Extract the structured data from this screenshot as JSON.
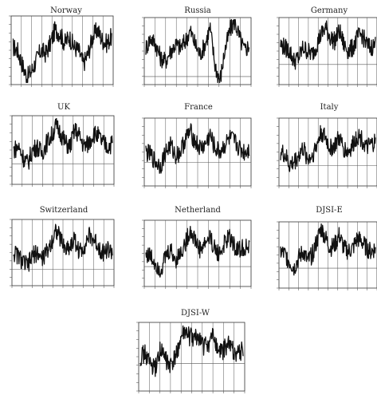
{
  "colors": {
    "line": "#111111",
    "frame": "#333333",
    "background": "#ffffff"
  },
  "chart_data": [
    {
      "type": "line",
      "title": "Norway",
      "grid": "vertical",
      "reference_line": false,
      "xlabel": "",
      "ylabel": ""
    },
    {
      "type": "line",
      "title": "Russia",
      "grid": "vertical",
      "reference_line": true,
      "xlabel": "",
      "ylabel": ""
    },
    {
      "type": "line",
      "title": "Germany",
      "grid": "vertical",
      "reference_line": true,
      "xlabel": "",
      "ylabel": ""
    },
    {
      "type": "line",
      "title": "UK",
      "grid": "vertical",
      "reference_line": true,
      "xlabel": "",
      "ylabel": ""
    },
    {
      "type": "line",
      "title": "France",
      "grid": "vertical",
      "reference_line": true,
      "xlabel": "",
      "ylabel": ""
    },
    {
      "type": "line",
      "title": "Italy",
      "grid": "vertical",
      "reference_line": true,
      "xlabel": "",
      "ylabel": ""
    },
    {
      "type": "line",
      "title": "Switzerland",
      "grid": "vertical",
      "reference_line": true,
      "xlabel": "",
      "ylabel": ""
    },
    {
      "type": "line",
      "title": "Netherland",
      "grid": "vertical",
      "reference_line": true,
      "xlabel": "",
      "ylabel": ""
    },
    {
      "type": "line",
      "title": "DJSI-E",
      "grid": "vertical",
      "reference_line": true,
      "xlabel": "",
      "ylabel": ""
    },
    {
      "type": "line",
      "title": "DJSI-W",
      "grid": "vertical",
      "reference_line": true,
      "xlabel": "",
      "ylabel": ""
    }
  ]
}
